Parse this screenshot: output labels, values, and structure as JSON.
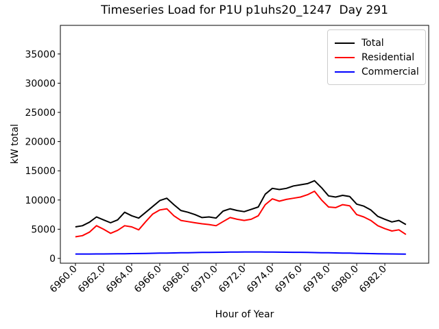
{
  "page": {
    "background": "#ffffff"
  },
  "chart_data": {
    "type": "line",
    "title": "Timeseries Load for P1U p1uhs20_1247  Day 291",
    "xlabel": "Hour of Year",
    "ylabel": "kW total",
    "grid": false,
    "xlim": [
      6958.93,
      6985.12
    ],
    "ylim": [
      -820,
      39900
    ],
    "x_start": 6960.0,
    "x_step": 0.5,
    "x_tick_labels": [
      "6960.0",
      "6962.0",
      "6964.0",
      "6966.0",
      "6968.0",
      "6970.0",
      "6972.0",
      "6974.0",
      "6976.0",
      "6978.0",
      "6980.0",
      "6982.0"
    ],
    "y_tick_labels": [
      "0",
      "5000",
      "10000",
      "15000",
      "20000",
      "25000",
      "30000",
      "35000"
    ],
    "legend": {
      "position": "top-right",
      "entries": [
        "Total",
        "Residential",
        "Commercial"
      ]
    },
    "series": [
      {
        "name": "Total",
        "color": "#000000",
        "values": [
          5400,
          5600,
          6200,
          7100,
          6600,
          6100,
          6600,
          7900,
          7300,
          6900,
          7900,
          8900,
          9900,
          10300,
          9200,
          8200,
          7900,
          7500,
          7000,
          7100,
          6900,
          8100,
          8500,
          8200,
          8000,
          8400,
          8800,
          11000,
          12000,
          11800,
          12000,
          12400,
          12600,
          12800,
          13300,
          12100,
          10700,
          10500,
          10800,
          10600,
          9300,
          8950,
          8300,
          7200,
          6700,
          6250,
          6500,
          5800
        ]
      },
      {
        "name": "Residential",
        "color": "#ff0000",
        "values": [
          3700,
          3900,
          4500,
          5600,
          5000,
          4300,
          4800,
          5600,
          5400,
          4900,
          6300,
          7600,
          8300,
          8500,
          7300,
          6500,
          6300,
          6100,
          5930,
          5800,
          5600,
          6300,
          7000,
          6700,
          6500,
          6700,
          7300,
          9200,
          10200,
          9800,
          10100,
          10300,
          10500,
          10900,
          11500,
          10000,
          8800,
          8700,
          9200,
          9000,
          7500,
          7100,
          6500,
          5600,
          5100,
          4700,
          4900,
          4100
        ]
      },
      {
        "name": "Commercial",
        "color": "#0000ff",
        "values": [
          750,
          750,
          750,
          760,
          770,
          780,
          790,
          800,
          820,
          840,
          860,
          880,
          900,
          920,
          940,
          960,
          980,
          1000,
          1020,
          1030,
          1050,
          1060,
          1080,
          1090,
          1100,
          1100,
          1100,
          1090,
          1080,
          1070,
          1060,
          1050,
          1040,
          1020,
          1000,
          980,
          960,
          940,
          920,
          900,
          870,
          850,
          820,
          800,
          780,
          760,
          750,
          740
        ]
      }
    ]
  }
}
